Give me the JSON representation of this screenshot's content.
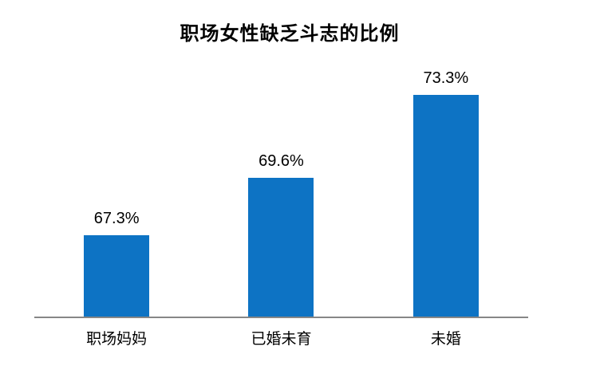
{
  "chart_data": {
    "type": "bar",
    "title": "职场女性缺乏斗志的比例",
    "categories": [
      "职场妈妈",
      "已婚未育",
      "未婚"
    ],
    "values": [
      67.3,
      69.6,
      73.3
    ],
    "value_labels": [
      "67.3%",
      "69.6%",
      "73.3%"
    ],
    "ylim": [
      64,
      74
    ],
    "xlabel": "",
    "ylabel": "",
    "grid": false,
    "legend": false,
    "y_axis_visible": false,
    "bar_color": "#0d73c4",
    "axis_line_color": "#868686",
    "text_color": "#000000",
    "background_color": "#ffffff"
  }
}
